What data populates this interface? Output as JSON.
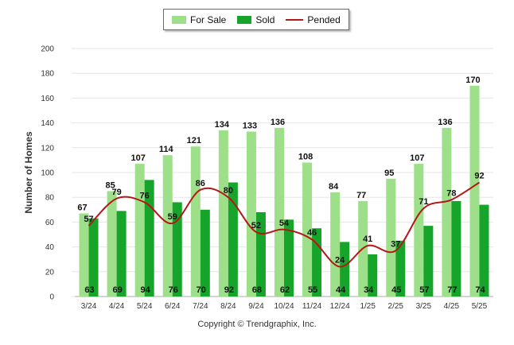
{
  "legend": {
    "for_sale_label": "For Sale",
    "sold_label": "Sold",
    "pended_label": "Pended"
  },
  "copyright": "Copyright © Trendgraphix, Inc.",
  "colors": {
    "for_sale": "#9ee08a",
    "sold": "#16a52a",
    "pended": "#b51717",
    "grid": "#e6e6e6"
  },
  "chart_data": {
    "type": "bar",
    "ylabel": "Number of Homes",
    "ylim": [
      0,
      200
    ],
    "yticks": [
      0,
      20,
      40,
      60,
      80,
      100,
      120,
      140,
      160,
      180,
      200
    ],
    "grid": true,
    "legend_position": "top-center",
    "categories": [
      "3/24",
      "4/24",
      "5/24",
      "6/24",
      "7/24",
      "8/24",
      "9/24",
      "10/24",
      "11/24",
      "12/24",
      "1/25",
      "2/25",
      "3/25",
      "4/25",
      "5/25"
    ],
    "series": [
      {
        "name": "For Sale",
        "type": "bar",
        "values": [
          67,
          85,
          107,
          114,
          121,
          134,
          133,
          136,
          108,
          84,
          77,
          95,
          107,
          136,
          170
        ]
      },
      {
        "name": "Sold",
        "type": "bar",
        "values": [
          63,
          69,
          94,
          76,
          70,
          92,
          68,
          62,
          55,
          44,
          34,
          45,
          57,
          77,
          74
        ]
      },
      {
        "name": "Pended",
        "type": "line",
        "values": [
          57,
          79,
          76,
          59,
          86,
          80,
          52,
          54,
          46,
          24,
          41,
          37,
          71,
          78,
          92
        ]
      }
    ]
  }
}
